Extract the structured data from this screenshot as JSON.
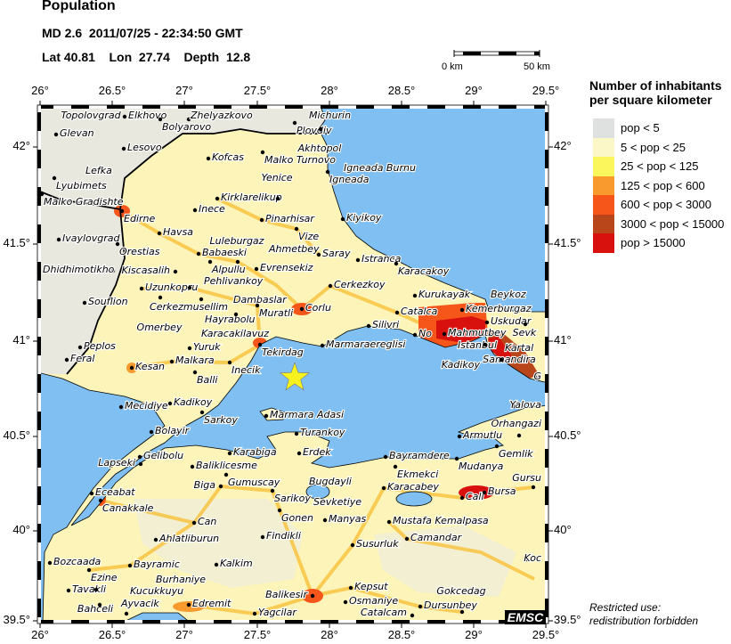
{
  "header": {
    "title": "Population",
    "event_line": "MD 2.6  2011/07/25 - 22:34:50 GMT",
    "location_line": "Lat 40.81    Lon  27.74    Depth  12.8"
  },
  "event": {
    "magnitude_type": "MD",
    "magnitude": 2.6,
    "lat": 40.81,
    "lon": 27.74,
    "depth": 12.8,
    "marker": "star-icon",
    "marker_color": "#f7f21f"
  },
  "axes": {
    "lon_ticks": [
      "26°",
      "26.5°",
      "27°",
      "27.5°",
      "28°",
      "28.5°",
      "29°",
      "29.5°"
    ],
    "lat_ticks": [
      "42°",
      "41.5°",
      "41°",
      "40.5°",
      "40°",
      "39.5°"
    ]
  },
  "scale_bar": {
    "start": "0 km",
    "end": "50 km"
  },
  "legend": {
    "title_line1": "Number of inhabitants",
    "title_line2": "per square kilometer",
    "items": [
      {
        "label": "pop < 5",
        "color": "#dfe0e0"
      },
      {
        "label": "5 < pop < 25",
        "color": "#fbf7c6"
      },
      {
        "label": "25 < pop < 125",
        "color": "#fbf65c"
      },
      {
        "label": "125 < pop < 600",
        "color": "#f99a2e"
      },
      {
        "label": "600 < pop < 3000",
        "color": "#f6561a"
      },
      {
        "label": "3000 < pop < 15000",
        "color": "#b9461a"
      },
      {
        "label": "pop > 15000",
        "color": "#d8100e"
      }
    ]
  },
  "colors": {
    "sea": "#7fbff2",
    "land_low": "#e6e6e2",
    "land": "#fcf4b8"
  },
  "cities": [
    "Elkhovo",
    "Bolyarovo",
    "Zhelyazkovo",
    "Glevan",
    "Topolovgrad",
    "Lesovo",
    "Lefka",
    "Lyubimets",
    "Malko Gradishte",
    "Kofcas",
    "Kirklarelikup",
    "Yenice",
    "Edirne",
    "Inece",
    "Pinarhisar",
    "Havsa",
    "Ivaylovgrad",
    "Orestias",
    "Vize",
    "Babaeski",
    "Alpullu",
    "Luleburgaz",
    "Kiscasalih",
    "Pehlivankoy",
    "Dhidhimotikho",
    "Evrensekiz",
    "Ahmetbey",
    "Michurin",
    "Plovdiv",
    "Akhtopol",
    "Malko Turnovo",
    "Igneada",
    "Igneada Burnu",
    "Kiyikoy",
    "Saray",
    "Istranca",
    "Karacakoy",
    "Uzunkopru",
    "Cerkezmusellim",
    "Dambaslar",
    "Omerbey",
    "Hayrabolu",
    "Souflion",
    "Muratli",
    "Karacakilavuz",
    "Tekirdag",
    "Yuruk",
    "Peplos",
    "Feral",
    "Malkara",
    "Kesan",
    "Inecik",
    "Balli",
    "Mecidiye",
    "Kadikoy",
    "Sarkoy",
    "Marmara Adasi",
    "Bolayir",
    "Cerkezkoy",
    "Corlu",
    "Kurukayak",
    "Catalca",
    "Silivri",
    "Marmaraereglisi",
    "No",
    "Mahmutbey",
    "Kemerburgaz",
    "Beykoz",
    "Uskudar",
    "Istanbul",
    "Sevk",
    "Samandira",
    "Kadikoy",
    "Kartal",
    "G",
    "Yalova",
    "Armutlu",
    "Orhangazi",
    "Gemlik",
    "Turankoy",
    "Gelibolu",
    "Lapseki",
    "Karabiga",
    "Baliklicesme",
    "Gumuscay",
    "Biga",
    "Sarikoy",
    "Eceabat",
    "Canakkale",
    "Gonen",
    "Can",
    "Findikli",
    "Ahlatliburun",
    "Bozcaada",
    "Ezine",
    "Bayramic",
    "Kalkim",
    "Tavakli",
    "Bahceli",
    "Ayvacik",
    "Edremit",
    "Yagcilar",
    "Kucukkuyu",
    "Burhaniye",
    "Erdek",
    "Bayramdere",
    "Mudanya",
    "Ekmekci",
    "Bugdayli",
    "Karacabey",
    "Cali",
    "Bursa",
    "Gursu",
    "Sevketiye",
    "Manyas",
    "Mustafa Kemalpasa",
    "Camandar",
    "Susurluk",
    "Koc",
    "Kepsut",
    "Balikesir",
    "Osmaniye",
    "Dursunbey",
    "Catalcam",
    "Gokcedag"
  ],
  "footer": {
    "restricted_line1": "Restricted use:",
    "restricted_line2": "redistribution forbidden",
    "logo": "EMSC"
  }
}
